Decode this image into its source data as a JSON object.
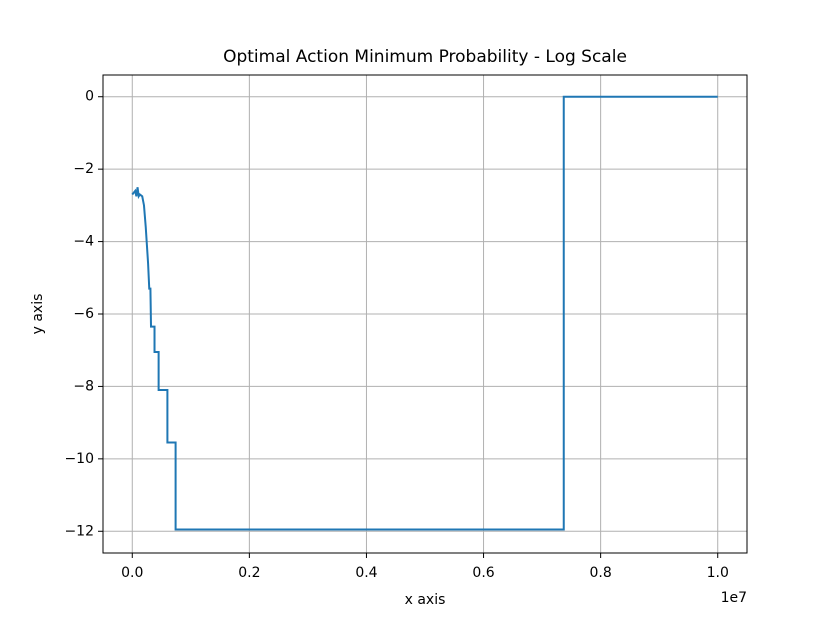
{
  "chart_data": {
    "type": "line",
    "title": "Optimal Action Minimum Probability - Log Scale",
    "xlabel": "x axis",
    "ylabel": "y axis",
    "x_offset_text": "1e7",
    "x": [
      0,
      50000,
      70000,
      90000,
      110000,
      130000,
      170000,
      200000,
      230000,
      250000,
      270000,
      290000,
      310000,
      320000,
      380000,
      380000,
      450000,
      450000,
      600000,
      600000,
      740000,
      740000,
      7370000,
      7370000,
      10000000
    ],
    "series": [
      {
        "name": "y",
        "color": "#1f77b4",
        "values": [
          -2.7,
          -2.6,
          -2.75,
          -2.5,
          -2.75,
          -2.7,
          -2.75,
          -3.0,
          -3.6,
          -4.1,
          -4.6,
          -5.3,
          -5.3,
          -6.35,
          -6.35,
          -7.05,
          -7.05,
          -8.1,
          -8.1,
          -9.55,
          -9.55,
          -11.95,
          -11.95,
          0,
          0
        ]
      }
    ],
    "xlim": [
      -500000,
      10500000
    ],
    "xticks": [
      {
        "value": 0,
        "label": "0.0"
      },
      {
        "value": 2000000,
        "label": "0.2"
      },
      {
        "value": 4000000,
        "label": "0.4"
      },
      {
        "value": 6000000,
        "label": "0.6"
      },
      {
        "value": 8000000,
        "label": "0.8"
      },
      {
        "value": 10000000,
        "label": "1.0"
      }
    ],
    "ylim": [
      -12.6,
      0.6
    ],
    "yticks": [
      {
        "value": -12,
        "label": "−12"
      },
      {
        "value": -10,
        "label": "−10"
      },
      {
        "value": -8,
        "label": "−8"
      },
      {
        "value": -6,
        "label": "−6"
      },
      {
        "value": -4,
        "label": "−4"
      },
      {
        "value": -2,
        "label": "−2"
      },
      0
    ],
    "grid": true
  }
}
